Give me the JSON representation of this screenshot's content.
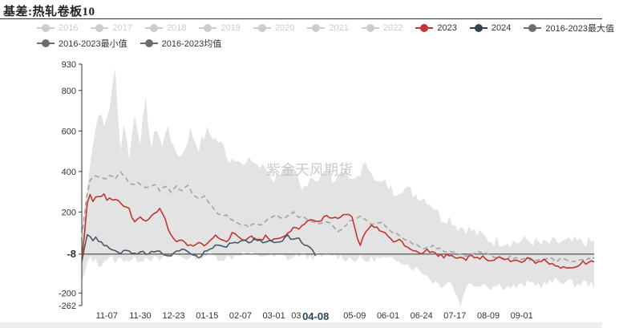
{
  "chart_data": {
    "type": "line",
    "title": "基差:热轧卷板10",
    "watermark": "紫金天风期货",
    "ylim": [
      -262,
      930
    ],
    "ytick_labels": [
      "930",
      "800",
      "600",
      "400",
      "200",
      "-8",
      "-200",
      "-262"
    ],
    "ytick_values": [
      930,
      800,
      600,
      400,
      200,
      -8,
      -200,
      -262
    ],
    "x_labels": [
      "11-07",
      "11-30",
      "12-23",
      "01-15",
      "02-07",
      "03-01",
      "03",
      "04-08",
      "05-09",
      "06-01",
      "06-24",
      "07-17",
      "08-09",
      "09-01"
    ],
    "x_label_positions": [
      9,
      21,
      33,
      45,
      57,
      69,
      77,
      84,
      98,
      110,
      122,
      134,
      146,
      158
    ],
    "highlight_x_label": "04-08",
    "highlight_y_label": "-8",
    "x_count": 185,
    "legend": [
      {
        "name": "2016",
        "color": "#cccccc",
        "active": false
      },
      {
        "name": "2017",
        "color": "#cccccc",
        "active": false
      },
      {
        "name": "2018",
        "color": "#cccccc",
        "active": false
      },
      {
        "name": "2019",
        "color": "#cccccc",
        "active": false
      },
      {
        "name": "2020",
        "color": "#cccccc",
        "active": false
      },
      {
        "name": "2021",
        "color": "#cccccc",
        "active": false
      },
      {
        "name": "2022",
        "color": "#cccccc",
        "active": false
      },
      {
        "name": "2023",
        "color": "#c23531",
        "active": true
      },
      {
        "name": "2024",
        "color": "#2f4554",
        "active": true
      },
      {
        "name": "2016-2023最大值",
        "color": "#6e6e6e",
        "active": true
      },
      {
        "name": "2016-2023最小值",
        "color": "#6e6e6e",
        "active": true
      },
      {
        "name": "2016-2023均值",
        "color": "#6e6e6e",
        "active": true
      }
    ],
    "colors": {
      "band": "#e3e3e3",
      "series_2023": "#c23531",
      "series_2024": "#4a5a68",
      "mean": "#a8a8a8",
      "axis": "#333333",
      "legend_inactive_text": "#cccccc",
      "legend_active_text": "#333333"
    },
    "band_upper_keypoints": [
      [
        0,
        100
      ],
      [
        3,
        450
      ],
      [
        6,
        700
      ],
      [
        8,
        620
      ],
      [
        10,
        720
      ],
      [
        12,
        900
      ],
      [
        14,
        500
      ],
      [
        15,
        650
      ],
      [
        17,
        480
      ],
      [
        19,
        680
      ],
      [
        21,
        560
      ],
      [
        23,
        740
      ],
      [
        25,
        520
      ],
      [
        27,
        620
      ],
      [
        29,
        520
      ],
      [
        31,
        640
      ],
      [
        33,
        500
      ],
      [
        36,
        480
      ],
      [
        39,
        600
      ],
      [
        42,
        520
      ],
      [
        45,
        600
      ],
      [
        48,
        560
      ],
      [
        51,
        520
      ],
      [
        53,
        460
      ],
      [
        56,
        480
      ],
      [
        58,
        420
      ],
      [
        61,
        460
      ],
      [
        64,
        420
      ],
      [
        66,
        420
      ],
      [
        69,
        360
      ],
      [
        72,
        420
      ],
      [
        74,
        400
      ],
      [
        77,
        380
      ],
      [
        79,
        300
      ],
      [
        82,
        380
      ],
      [
        85,
        360
      ],
      [
        88,
        400
      ],
      [
        91,
        360
      ],
      [
        94,
        420
      ],
      [
        97,
        340
      ],
      [
        99,
        380
      ],
      [
        101,
        420
      ],
      [
        104,
        420
      ],
      [
        106,
        340
      ],
      [
        109,
        340
      ],
      [
        112,
        300
      ],
      [
        115,
        320
      ],
      [
        118,
        300
      ],
      [
        121,
        280
      ],
      [
        124,
        260
      ],
      [
        127,
        220
      ],
      [
        129,
        170
      ],
      [
        132,
        170
      ],
      [
        135,
        130
      ],
      [
        138,
        120
      ],
      [
        141,
        100
      ],
      [
        144,
        80
      ],
      [
        147,
        60
      ],
      [
        150,
        55
      ],
      [
        153,
        55
      ],
      [
        156,
        50
      ],
      [
        159,
        60
      ],
      [
        162,
        55
      ],
      [
        165,
        40
      ],
      [
        168,
        45
      ],
      [
        171,
        50
      ],
      [
        174,
        50
      ],
      [
        177,
        50
      ],
      [
        180,
        50
      ],
      [
        184,
        50
      ]
    ],
    "band_lower_keypoints": [
      [
        0,
        -150
      ],
      [
        3,
        -20
      ],
      [
        6,
        -60
      ],
      [
        9,
        -30
      ],
      [
        12,
        -40
      ],
      [
        15,
        -30
      ],
      [
        18,
        -40
      ],
      [
        21,
        -30
      ],
      [
        24,
        -20
      ],
      [
        27,
        -40
      ],
      [
        30,
        -30
      ],
      [
        33,
        -10
      ],
      [
        36,
        -20
      ],
      [
        39,
        -30
      ],
      [
        42,
        -20
      ],
      [
        45,
        -10
      ],
      [
        48,
        -20
      ],
      [
        51,
        -30
      ],
      [
        54,
        -20
      ],
      [
        57,
        0
      ],
      [
        60,
        -10
      ],
      [
        63,
        -20
      ],
      [
        66,
        -10
      ],
      [
        69,
        -20
      ],
      [
        72,
        -20
      ],
      [
        75,
        -30
      ],
      [
        78,
        -10
      ],
      [
        81,
        -20
      ],
      [
        84,
        -20
      ],
      [
        87,
        -20
      ],
      [
        90,
        -10
      ],
      [
        93,
        -20
      ],
      [
        96,
        -30
      ],
      [
        99,
        -30
      ],
      [
        102,
        -40
      ],
      [
        105,
        -30
      ],
      [
        108,
        -30
      ],
      [
        111,
        -40
      ],
      [
        114,
        -30
      ],
      [
        117,
        -60
      ],
      [
        120,
        -80
      ],
      [
        123,
        -100
      ],
      [
        126,
        -140
      ],
      [
        129,
        -160
      ],
      [
        132,
        -140
      ],
      [
        134,
        -190
      ],
      [
        136,
        -260
      ],
      [
        138,
        -160
      ],
      [
        141,
        -160
      ],
      [
        144,
        -150
      ],
      [
        147,
        -170
      ],
      [
        150,
        -160
      ],
      [
        153,
        -170
      ],
      [
        156,
        -170
      ],
      [
        159,
        -160
      ],
      [
        162,
        -150
      ],
      [
        165,
        -160
      ],
      [
        168,
        -150
      ],
      [
        171,
        -140
      ],
      [
        174,
        -140
      ],
      [
        177,
        -160
      ],
      [
        180,
        -150
      ],
      [
        184,
        -160
      ]
    ],
    "mean_keypoints": [
      [
        0,
        80
      ],
      [
        2,
        300
      ],
      [
        3,
        360
      ],
      [
        5,
        380
      ],
      [
        8,
        360
      ],
      [
        10,
        380
      ],
      [
        12,
        360
      ],
      [
        14,
        400
      ],
      [
        16,
        360
      ],
      [
        18,
        330
      ],
      [
        20,
        340
      ],
      [
        22,
        330
      ],
      [
        24,
        320
      ],
      [
        26,
        340
      ],
      [
        28,
        310
      ],
      [
        30,
        330
      ],
      [
        32,
        300
      ],
      [
        34,
        330
      ],
      [
        36,
        300
      ],
      [
        38,
        330
      ],
      [
        40,
        280
      ],
      [
        42,
        260
      ],
      [
        44,
        280
      ],
      [
        46,
        240
      ],
      [
        48,
        200
      ],
      [
        50,
        190
      ],
      [
        52,
        180
      ],
      [
        54,
        160
      ],
      [
        56,
        150
      ],
      [
        58,
        140
      ],
      [
        60,
        130
      ],
      [
        62,
        140
      ],
      [
        64,
        130
      ],
      [
        66,
        160
      ],
      [
        68,
        180
      ],
      [
        70,
        190
      ],
      [
        72,
        170
      ],
      [
        74,
        180
      ],
      [
        76,
        200
      ],
      [
        78,
        180
      ],
      [
        80,
        170
      ],
      [
        82,
        160
      ],
      [
        84,
        150
      ],
      [
        86,
        140
      ],
      [
        88,
        150
      ],
      [
        90,
        130
      ],
      [
        92,
        110
      ],
      [
        94,
        120
      ],
      [
        96,
        150
      ],
      [
        98,
        160
      ],
      [
        100,
        180
      ],
      [
        102,
        160
      ],
      [
        104,
        140
      ],
      [
        106,
        140
      ],
      [
        108,
        150
      ],
      [
        110,
        120
      ],
      [
        112,
        100
      ],
      [
        114,
        80
      ],
      [
        116,
        60
      ],
      [
        118,
        50
      ],
      [
        120,
        40
      ],
      [
        122,
        30
      ],
      [
        124,
        20
      ],
      [
        126,
        30
      ],
      [
        128,
        20
      ],
      [
        130,
        10
      ],
      [
        132,
        5
      ],
      [
        134,
        0
      ],
      [
        136,
        -10
      ],
      [
        138,
        -20
      ],
      [
        140,
        -10
      ],
      [
        142,
        0
      ],
      [
        144,
        -5
      ],
      [
        146,
        -10
      ],
      [
        148,
        -20
      ],
      [
        150,
        -20
      ],
      [
        152,
        -30
      ],
      [
        154,
        -20
      ],
      [
        156,
        -30
      ],
      [
        158,
        -40
      ],
      [
        160,
        -30
      ],
      [
        162,
        -40
      ],
      [
        164,
        -40
      ],
      [
        166,
        -30
      ],
      [
        168,
        -30
      ],
      [
        170,
        -40
      ],
      [
        172,
        -30
      ],
      [
        174,
        -40
      ],
      [
        176,
        -40
      ],
      [
        178,
        -40
      ],
      [
        180,
        -40
      ],
      [
        182,
        -30
      ],
      [
        184,
        -30
      ]
    ],
    "series_2023_keypoints": [
      [
        0,
        -30
      ],
      [
        1,
        100
      ],
      [
        2,
        240
      ],
      [
        3,
        280
      ],
      [
        4,
        260
      ],
      [
        5,
        280
      ],
      [
        6,
        270
      ],
      [
        8,
        290
      ],
      [
        9,
        250
      ],
      [
        10,
        270
      ],
      [
        12,
        260
      ],
      [
        14,
        240
      ],
      [
        16,
        230
      ],
      [
        17,
        220
      ],
      [
        18,
        180
      ],
      [
        19,
        150
      ],
      [
        20,
        160
      ],
      [
        21,
        170
      ],
      [
        22,
        160
      ],
      [
        24,
        160
      ],
      [
        26,
        200
      ],
      [
        28,
        210
      ],
      [
        30,
        160
      ],
      [
        32,
        80
      ],
      [
        34,
        50
      ],
      [
        36,
        60
      ],
      [
        38,
        30
      ],
      [
        40,
        40
      ],
      [
        42,
        50
      ],
      [
        44,
        30
      ],
      [
        46,
        60
      ],
      [
        48,
        80
      ],
      [
        50,
        70
      ],
      [
        52,
        60
      ],
      [
        54,
        90
      ],
      [
        56,
        80
      ],
      [
        58,
        60
      ],
      [
        60,
        80
      ],
      [
        62,
        70
      ],
      [
        64,
        60
      ],
      [
        66,
        80
      ],
      [
        68,
        60
      ],
      [
        70,
        70
      ],
      [
        72,
        80
      ],
      [
        74,
        100
      ],
      [
        76,
        120
      ],
      [
        78,
        110
      ],
      [
        80,
        140
      ],
      [
        82,
        170
      ],
      [
        84,
        150
      ],
      [
        86,
        160
      ],
      [
        88,
        180
      ],
      [
        90,
        170
      ],
      [
        92,
        160
      ],
      [
        94,
        180
      ],
      [
        96,
        190
      ],
      [
        97,
        170
      ],
      [
        98,
        120
      ],
      [
        99,
        70
      ],
      [
        100,
        40
      ],
      [
        102,
        100
      ],
      [
        104,
        140
      ],
      [
        106,
        120
      ],
      [
        108,
        100
      ],
      [
        110,
        80
      ],
      [
        112,
        60
      ],
      [
        114,
        60
      ],
      [
        116,
        40
      ],
      [
        118,
        20
      ],
      [
        120,
        10
      ],
      [
        122,
        0
      ],
      [
        124,
        10
      ],
      [
        126,
        0
      ],
      [
        128,
        -10
      ],
      [
        130,
        -20
      ],
      [
        132,
        -10
      ],
      [
        134,
        -20
      ],
      [
        136,
        -20
      ],
      [
        138,
        -30
      ],
      [
        140,
        -20
      ],
      [
        142,
        -30
      ],
      [
        144,
        -20
      ],
      [
        146,
        -40
      ],
      [
        148,
        -30
      ],
      [
        150,
        -20
      ],
      [
        152,
        -30
      ],
      [
        154,
        -40
      ],
      [
        156,
        -40
      ],
      [
        158,
        -50
      ],
      [
        160,
        -30
      ],
      [
        162,
        -40
      ],
      [
        164,
        -50
      ],
      [
        166,
        -40
      ],
      [
        168,
        -60
      ],
      [
        170,
        -60
      ],
      [
        172,
        -70
      ],
      [
        174,
        -70
      ],
      [
        176,
        -70
      ],
      [
        178,
        -70
      ],
      [
        179,
        -60
      ],
      [
        180,
        -40
      ],
      [
        181,
        -60
      ],
      [
        182,
        -40
      ],
      [
        184,
        -50
      ]
    ],
    "series_2024_keypoints": [
      [
        0,
        -40
      ],
      [
        1,
        30
      ],
      [
        2,
        90
      ],
      [
        3,
        80
      ],
      [
        4,
        60
      ],
      [
        5,
        70
      ],
      [
        6,
        60
      ],
      [
        8,
        40
      ],
      [
        10,
        20
      ],
      [
        12,
        10
      ],
      [
        14,
        0
      ],
      [
        16,
        10
      ],
      [
        18,
        0
      ],
      [
        20,
        -10
      ],
      [
        22,
        0
      ],
      [
        24,
        -10
      ],
      [
        26,
        10
      ],
      [
        28,
        0
      ],
      [
        30,
        -10
      ],
      [
        32,
        -20
      ],
      [
        34,
        0
      ],
      [
        36,
        20
      ],
      [
        38,
        0
      ],
      [
        40,
        -10
      ],
      [
        42,
        -20
      ],
      [
        44,
        0
      ],
      [
        46,
        20
      ],
      [
        48,
        30
      ],
      [
        50,
        40
      ],
      [
        52,
        30
      ],
      [
        54,
        50
      ],
      [
        56,
        40
      ],
      [
        58,
        60
      ],
      [
        60,
        50
      ],
      [
        62,
        70
      ],
      [
        64,
        60
      ],
      [
        66,
        50
      ],
      [
        68,
        60
      ],
      [
        70,
        50
      ],
      [
        72,
        60
      ],
      [
        74,
        80
      ],
      [
        76,
        60
      ],
      [
        78,
        70
      ],
      [
        80,
        40
      ],
      [
        82,
        20
      ],
      [
        84,
        -10
      ]
    ]
  }
}
